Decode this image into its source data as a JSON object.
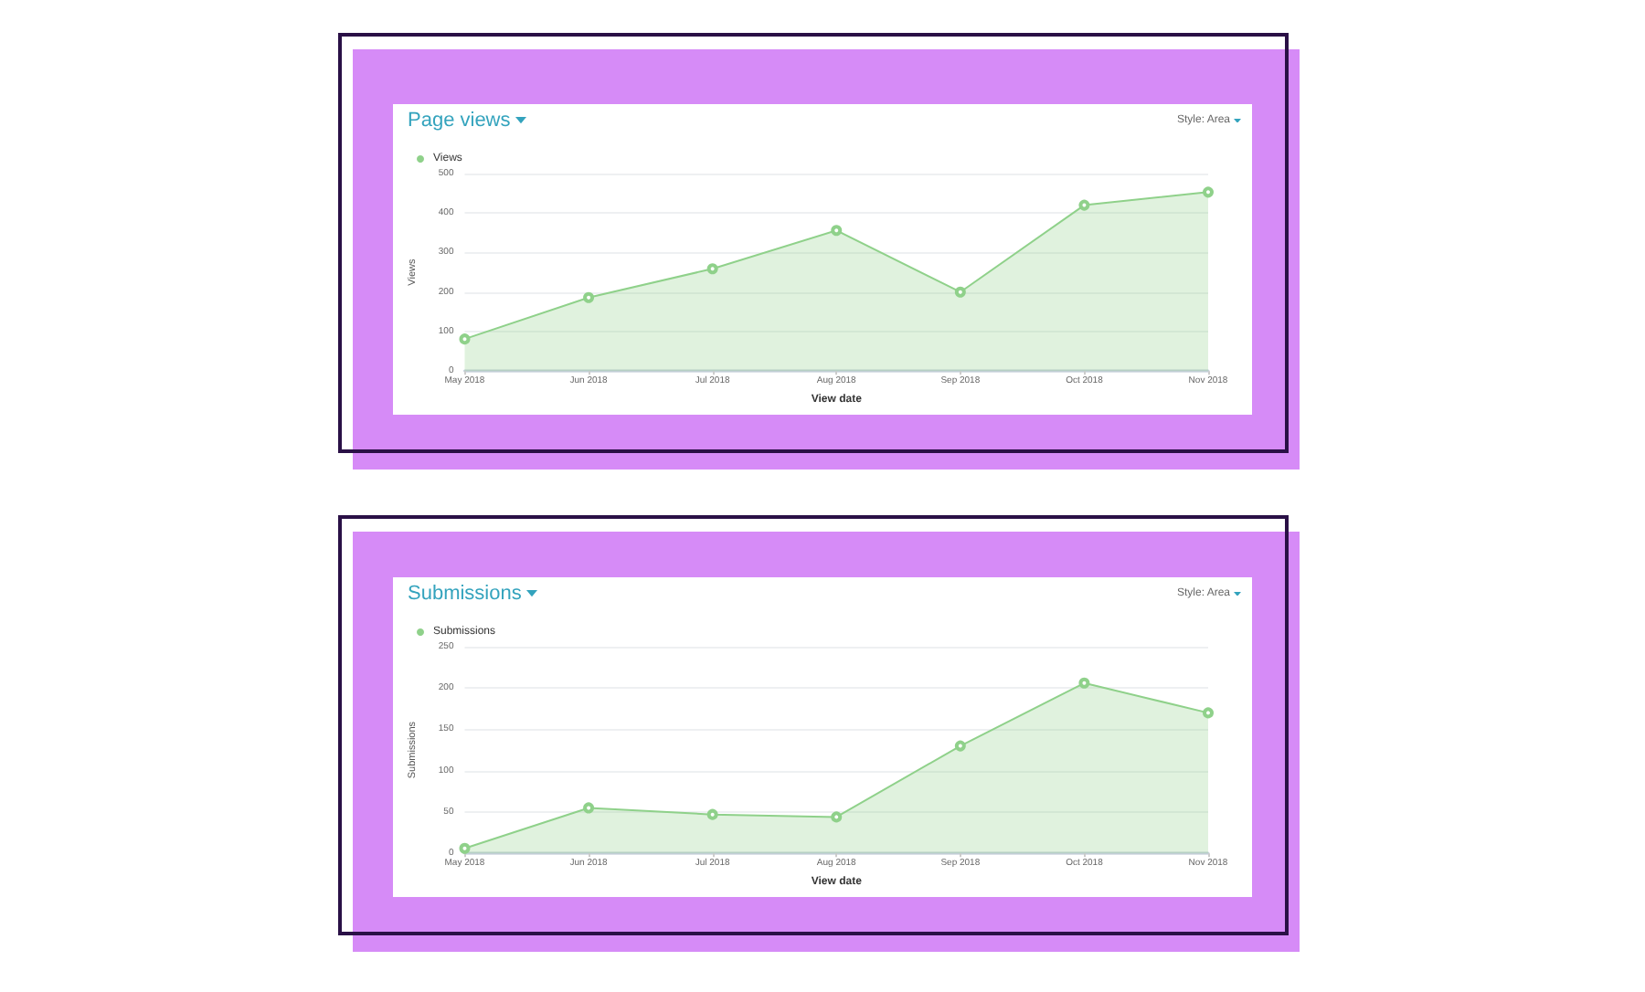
{
  "chart_data": [
    {
      "type": "area",
      "title": "Page views",
      "annotations": [
        "Style: Area"
      ],
      "xlabel": "View date",
      "ylabel": "Views",
      "categories": [
        "May 2018",
        "Jun 2018",
        "Jul 2018",
        "Aug 2018",
        "Sep 2018",
        "Oct 2018",
        "Nov 2018"
      ],
      "series": [
        {
          "name": "Views",
          "color": "#8fd18a",
          "values": [
            81,
            186,
            259,
            356,
            200,
            420,
            453
          ]
        }
      ],
      "ylim": [
        0,
        500
      ],
      "yticks": [
        0,
        100,
        200,
        300,
        400,
        500
      ],
      "grid": "y",
      "legend": "top left",
      "marker": "circle"
    },
    {
      "type": "area",
      "title": "Submissions",
      "annotations": [
        "Style: Area"
      ],
      "xlabel": "View date",
      "ylabel": "Submissions",
      "categories": [
        "May 2018",
        "Jun 2018",
        "Jul 2018",
        "Aug 2018",
        "Sep 2018",
        "Oct 2018",
        "Nov 2018"
      ],
      "series": [
        {
          "name": "Submissions",
          "color": "#8fd18a",
          "values": [
            6,
            55,
            47,
            44,
            130,
            206,
            170
          ]
        }
      ],
      "ylim": [
        0,
        250
      ],
      "yticks": [
        0,
        50,
        100,
        150,
        200,
        250
      ],
      "grid": "y",
      "legend": "top left",
      "marker": "circle"
    }
  ]
}
